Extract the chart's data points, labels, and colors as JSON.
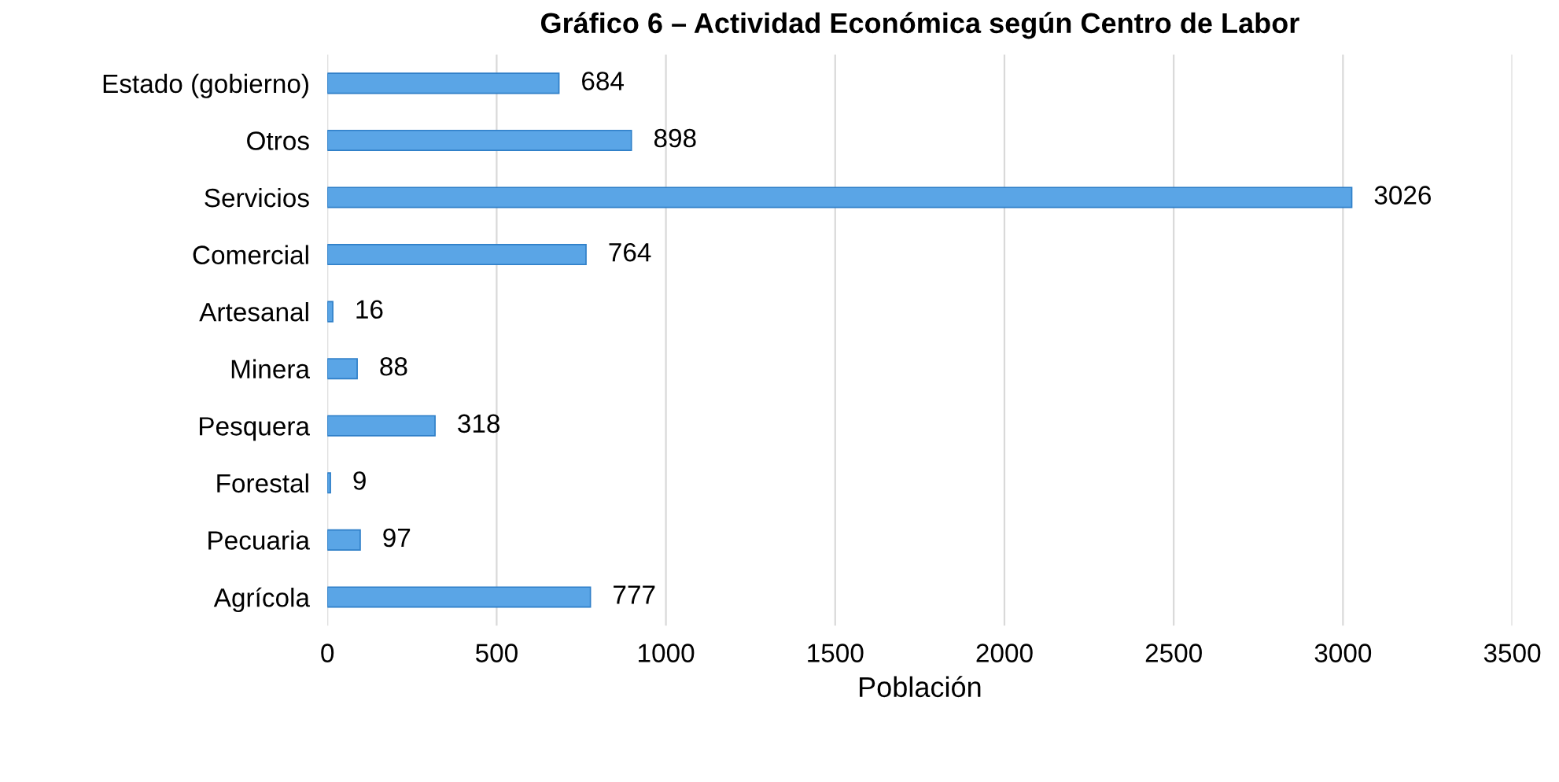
{
  "chart_data": {
    "type": "bar",
    "orientation": "horizontal",
    "title": "Gráfico 6 – Actividad Económica según Centro de Labor",
    "xlabel": "Población",
    "categories": [
      "Estado (gobierno)",
      "Otros",
      "Servicios",
      "Comercial",
      "Artesanal",
      "Minera",
      "Pesquera",
      "Forestal",
      "Pecuaria",
      "Agrícola"
    ],
    "values": [
      684,
      898,
      3026,
      764,
      16,
      88,
      318,
      9,
      97,
      777
    ],
    "color": "#5aa5e6",
    "xlim": [
      0,
      3500
    ],
    "xticks": [
      0,
      500,
      1000,
      1500,
      2000,
      2500,
      3000,
      3500
    ],
    "grid": "x",
    "data_labels": true
  }
}
